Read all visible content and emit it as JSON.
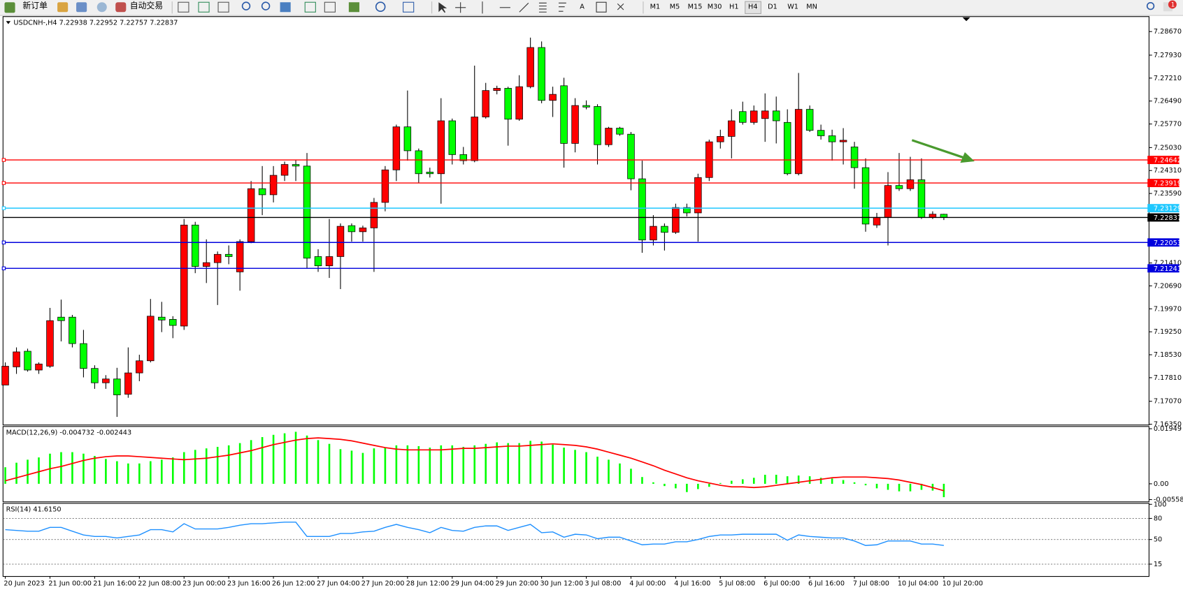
{
  "toolbar": {
    "buttons": [
      "新订单",
      "自动交易"
    ],
    "timeframes": [
      "M1",
      "M5",
      "M15",
      "M30",
      "H1",
      "H4",
      "D1",
      "W1",
      "MN"
    ],
    "notifications": "1"
  },
  "chart_data": [
    {
      "type": "candlestick",
      "title": "USDCNH-,H4 7.22938 7.22952 7.22757 7.22837",
      "categories": [
        "20 Jun 2023",
        null,
        null,
        null,
        "21 Jun 00:00",
        null,
        null,
        null,
        "21 Jun 16:00",
        null,
        null,
        null,
        "22 Jun 08:00",
        null,
        null,
        null,
        "23 Jun 00:00",
        null,
        null,
        null,
        "23 Jun 16:00",
        null,
        null,
        null,
        "26 Jun 12:00",
        null,
        null,
        null,
        "27 Jun 04:00",
        null,
        null,
        null,
        "27 Jun 20:00",
        null,
        null,
        null,
        "28 Jun 12:00",
        null,
        null,
        null,
        "29 Jun 04:00",
        null,
        null,
        null,
        "29 Jun 20:00",
        null,
        null,
        null,
        "30 Jun 12:00",
        null,
        null,
        null,
        "3 Jul 08:00",
        null,
        null,
        null,
        "4 Jul 00:00",
        null,
        null,
        null,
        "4 Jul 16:00",
        null,
        null,
        null,
        "5 Jul 08:00",
        null,
        null,
        null,
        "6 Jul 00:00",
        null,
        null,
        null,
        "6 Jul 16:00",
        null,
        null,
        null,
        "7 Jul 08:00",
        null,
        null,
        null,
        "10 Jul 04:00",
        null,
        null,
        null,
        "10 Jul 20:00"
      ],
      "open": [
        7.1758,
        7.1815,
        7.1864,
        7.1805,
        7.1817,
        7.1971,
        7.1971,
        7.1888,
        7.181,
        7.1765,
        7.1777,
        7.1729,
        7.1796,
        7.1834,
        7.1971,
        7.1964,
        7.1943,
        7.226,
        7.213,
        7.2142,
        7.2168,
        7.2113,
        7.2208,
        7.2374,
        7.2355,
        7.2416,
        7.245,
        7.2445,
        7.2161,
        7.2132,
        7.2161,
        7.2258,
        7.2239,
        7.2251,
        7.2331,
        7.2433,
        7.2568,
        7.2493,
        7.2426,
        7.2421,
        7.2587,
        7.2481,
        7.2462,
        7.2599,
        7.2682,
        7.2689,
        7.2592,
        7.2694,
        7.2817,
        7.2651,
        7.2697,
        7.2516,
        7.2635,
        7.2632,
        7.2512,
        7.2564,
        7.2545,
        7.2405,
        7.2213,
        7.2256,
        7.2237,
        7.2315,
        7.2298,
        7.2409,
        7.2521,
        7.2538,
        7.2616,
        7.2582,
        7.2594,
        7.2618,
        7.2582,
        7.2421,
        7.2623,
        7.2557,
        7.254,
        7.2521,
        7.2505,
        7.244,
        7.226,
        7.2284,
        7.2384,
        7.2374,
        7.2402,
        7.2284,
        7.22938
      ],
      "high": [
        7.1829,
        7.1876,
        7.1872,
        7.1829,
        7.2,
        7.2026,
        7.1978,
        7.1931,
        7.182,
        7.1789,
        7.1812,
        7.1876,
        7.1853,
        7.2028,
        7.2019,
        7.1974,
        7.2279,
        7.227,
        7.2215,
        7.2177,
        7.2196,
        7.2215,
        7.2398,
        7.2445,
        7.2445,
        7.2459,
        7.2464,
        7.2486,
        7.2184,
        7.2279,
        7.2265,
        7.2265,
        7.2258,
        7.2345,
        7.2445,
        7.2575,
        7.2682,
        7.25,
        7.244,
        7.2658,
        7.2594,
        7.2505,
        7.276,
        7.2706,
        7.2697,
        7.2694,
        7.273,
        7.2848,
        7.2836,
        7.2694,
        7.2722,
        7.2658,
        7.2651,
        7.2639,
        7.2568,
        7.2568,
        7.2552,
        7.2462,
        7.2291,
        7.2265,
        7.2327,
        7.2327,
        7.2421,
        7.2528,
        7.2559,
        7.2623,
        7.2647,
        7.2635,
        7.2673,
        7.2663,
        7.2623,
        7.2737,
        7.2635,
        7.2575,
        7.2559,
        7.2564,
        7.2521,
        7.2469,
        7.2298,
        7.2426,
        7.2486,
        7.2474,
        7.2469,
        7.2303,
        7.22952
      ],
      "low": [
        7.1758,
        7.1793,
        7.18,
        7.1793,
        7.1812,
        7.1895,
        7.1876,
        7.1782,
        7.1746,
        7.1746,
        7.1658,
        7.1718,
        7.177,
        7.1829,
        7.1924,
        7.1905,
        7.1931,
        7.2109,
        7.2078,
        7.2009,
        7.2137,
        7.2054,
        7.2203,
        7.2291,
        7.2331,
        7.2398,
        7.2398,
        7.2125,
        7.2113,
        7.2094,
        7.2059,
        7.2208,
        7.2208,
        7.2113,
        7.2303,
        7.2398,
        7.2462,
        7.2391,
        7.2409,
        7.2327,
        7.245,
        7.245,
        7.2457,
        7.2594,
        7.267,
        7.2509,
        7.2587,
        7.2689,
        7.2642,
        7.2599,
        7.244,
        7.2488,
        7.2623,
        7.245,
        7.2505,
        7.254,
        7.2369,
        7.2173,
        7.2196,
        7.218,
        7.2232,
        7.2287,
        7.2208,
        7.2398,
        7.25,
        7.2469,
        7.2575,
        7.2575,
        7.2521,
        7.2516,
        7.2416,
        7.2416,
        7.2552,
        7.2528,
        7.2462,
        7.245,
        7.2374,
        7.2239,
        7.2251,
        7.2196,
        7.2367,
        7.2367,
        7.2279,
        7.2279,
        7.22757
      ],
      "close": [
        7.1817,
        7.1862,
        7.1805,
        7.1824,
        7.196,
        7.196,
        7.1888,
        7.181,
        7.1765,
        7.1777,
        7.1727,
        7.1796,
        7.1834,
        7.1974,
        7.1962,
        7.1945,
        7.226,
        7.213,
        7.2142,
        7.2168,
        7.2161,
        7.2208,
        7.2374,
        7.2355,
        7.2416,
        7.245,
        7.2445,
        7.2156,
        7.2132,
        7.2161,
        7.2256,
        7.2239,
        7.2251,
        7.2331,
        7.2433,
        7.2568,
        7.2493,
        7.2421,
        7.2421,
        7.2587,
        7.2481,
        7.2462,
        7.2599,
        7.2682,
        7.2689,
        7.2592,
        7.2694,
        7.2817,
        7.2651,
        7.267,
        7.2516,
        7.2635,
        7.263,
        7.2512,
        7.2564,
        7.2545,
        7.2405,
        7.2213,
        7.2256,
        7.2237,
        7.2315,
        7.2298,
        7.2409,
        7.2521,
        7.2538,
        7.2587,
        7.2582,
        7.2618,
        7.2618,
        7.2587,
        7.2421,
        7.2623,
        7.2557,
        7.254,
        7.2521,
        7.2526,
        7.244,
        7.2263,
        7.2284,
        7.2384,
        7.2374,
        7.2402,
        7.2284,
        7.2294,
        7.22837
      ],
      "up_color": "#ff0000",
      "down_color": "#00ff00",
      "ylim": [
        7.1635,
        7.2914
      ],
      "yticks": [
        {
          "value": 7.2867,
          "label": "7.28670"
        },
        {
          "value": 7.2793,
          "label": "7.27930"
        },
        {
          "value": 7.2721,
          "label": "7.27210"
        },
        {
          "value": 7.2649,
          "label": "7.26490"
        },
        {
          "value": 7.2577,
          "label": "7.25770"
        },
        {
          "value": 7.2503,
          "label": "7.25030"
        },
        {
          "value": 7.2431,
          "label": "7.24310"
        },
        {
          "value": 7.2359,
          "label": "7.23590"
        },
        {
          "value": 7.2141,
          "label": "7.21410"
        },
        {
          "value": 7.2069,
          "label": "7.20690"
        },
        {
          "value": 7.1997,
          "label": "7.19970"
        },
        {
          "value": 7.1925,
          "label": "7.19250"
        },
        {
          "value": 7.1853,
          "label": "7.18530"
        },
        {
          "value": 7.1781,
          "label": "7.17810"
        },
        {
          "value": 7.1707,
          "label": "7.17070"
        },
        {
          "value": 7.1635,
          "label": "7.16350"
        }
      ],
      "hlines": [
        {
          "value": 7.24642,
          "color": "#ff0000"
        },
        {
          "value": 7.23919,
          "color": "#ff0000"
        },
        {
          "value": 7.23129,
          "color": "#1ec8ff"
        },
        {
          "value": 7.22837,
          "color": "#000000"
        },
        {
          "value": 7.22053,
          "color": "#0000dd"
        },
        {
          "value": 7.21241,
          "color": "#0000dd"
        }
      ]
    },
    {
      "type": "macd",
      "title": "MACD(12,26,9) -0.004732 -0.002443",
      "histogram": {
        "color": "#00ff00",
        "values": [
          0.00587,
          0.00747,
          0.00854,
          0.00934,
          0.01067,
          0.01121,
          0.01121,
          0.01067,
          0.00987,
          0.0088,
          0.008,
          0.0072,
          0.0072,
          0.008,
          0.00854,
          0.00934,
          0.01121,
          0.01201,
          0.01254,
          0.01307,
          0.01361,
          0.01441,
          0.01547,
          0.01654,
          0.01734,
          0.01788,
          0.01841,
          0.01708,
          0.01547,
          0.01414,
          0.01227,
          0.01174,
          0.01094,
          0.01254,
          0.01281,
          0.01361,
          0.01361,
          0.01334,
          0.01281,
          0.01361,
          0.01361,
          0.01307,
          0.01361,
          0.01414,
          0.01467,
          0.01441,
          0.01441,
          0.01521,
          0.01494,
          0.01387,
          0.01281,
          0.01201,
          0.01121,
          0.0096,
          0.00854,
          0.0072,
          0.00534,
          0.0024,
          0.00053,
          -0.0008,
          -0.0016,
          -0.00293,
          -0.00187,
          -0.00107,
          0.00027,
          0.00107,
          0.0016,
          0.00213,
          0.0032,
          0.0032,
          0.00267,
          0.00293,
          0.00267,
          0.00213,
          0.00187,
          0.00133,
          0.00053,
          -0.00053,
          -0.0016,
          -0.00213,
          -0.00267,
          -0.00267,
          -0.00213,
          -0.0024,
          -0.004732
        ]
      },
      "signal": {
        "color": "#ff0000",
        "values": [
          0.00107,
          0.00213,
          0.0032,
          0.00427,
          0.00534,
          0.00614,
          0.0072,
          0.00827,
          0.00907,
          0.0096,
          0.00987,
          0.00987,
          0.0096,
          0.00934,
          0.00907,
          0.0088,
          0.00854,
          0.0088,
          0.00907,
          0.0096,
          0.01014,
          0.01094,
          0.01174,
          0.01281,
          0.01387,
          0.01467,
          0.01547,
          0.01601,
          0.01627,
          0.01601,
          0.01574,
          0.01521,
          0.01441,
          0.01361,
          0.01281,
          0.01227,
          0.01201,
          0.01201,
          0.01201,
          0.01201,
          0.01227,
          0.01254,
          0.01254,
          0.01281,
          0.01307,
          0.01334,
          0.01334,
          0.01361,
          0.01387,
          0.01414,
          0.01387,
          0.01361,
          0.01307,
          0.01227,
          0.01121,
          0.01014,
          0.00907,
          0.00774,
          0.0064,
          0.0048,
          0.00347,
          0.00213,
          0.00107,
          0.00027,
          -0.00053,
          -0.00107,
          -0.00107,
          -0.00133,
          -0.00107,
          -0.00053,
          0,
          0.00053,
          0.00107,
          0.0016,
          0.00213,
          0.0024,
          0.0024,
          0.0024,
          0.00213,
          0.00187,
          0.00133,
          0.00053,
          -0.00027,
          -0.00133,
          -0.002443
        ]
      },
      "ylim": [
        -0.005585,
        0.01949
      ],
      "yticks": [
        0.01949,
        {
          "value": 0,
          "label": "0.00"
        },
        -0.005585
      ]
    },
    {
      "type": "line",
      "title": "RSI(14) 41.6150",
      "color": "#1e90ff",
      "values": [
        64.0,
        62.9,
        61.8,
        61.8,
        67.2,
        67.2,
        61.8,
        56.5,
        54.3,
        54.3,
        52.2,
        54.3,
        56.5,
        64.0,
        64.0,
        60.8,
        72.5,
        65.0,
        65.0,
        65.0,
        67.2,
        70.4,
        72.5,
        72.5,
        73.6,
        74.7,
        74.7,
        54.3,
        54.3,
        54.3,
        58.6,
        58.6,
        60.8,
        61.8,
        67.2,
        71.5,
        67.2,
        64.0,
        59.7,
        67.2,
        62.9,
        61.8,
        67.2,
        69.3,
        69.3,
        62.9,
        67.2,
        71.5,
        59.7,
        60.8,
        53.3,
        57.5,
        56.5,
        51.1,
        53.3,
        53.3,
        47.9,
        42.5,
        43.6,
        43.6,
        46.8,
        46.8,
        50.0,
        54.3,
        56.5,
        56.5,
        57.5,
        57.5,
        57.5,
        57.5,
        49.0,
        56.5,
        54.3,
        53.3,
        52.2,
        52.2,
        47.9,
        41.5,
        42.5,
        47.9,
        47.9,
        47.9,
        43.6,
        43.6,
        41.615
      ],
      "ylim": [
        0,
        100
      ],
      "yticks": [
        100,
        80,
        50,
        15
      ],
      "grid": true
    }
  ]
}
